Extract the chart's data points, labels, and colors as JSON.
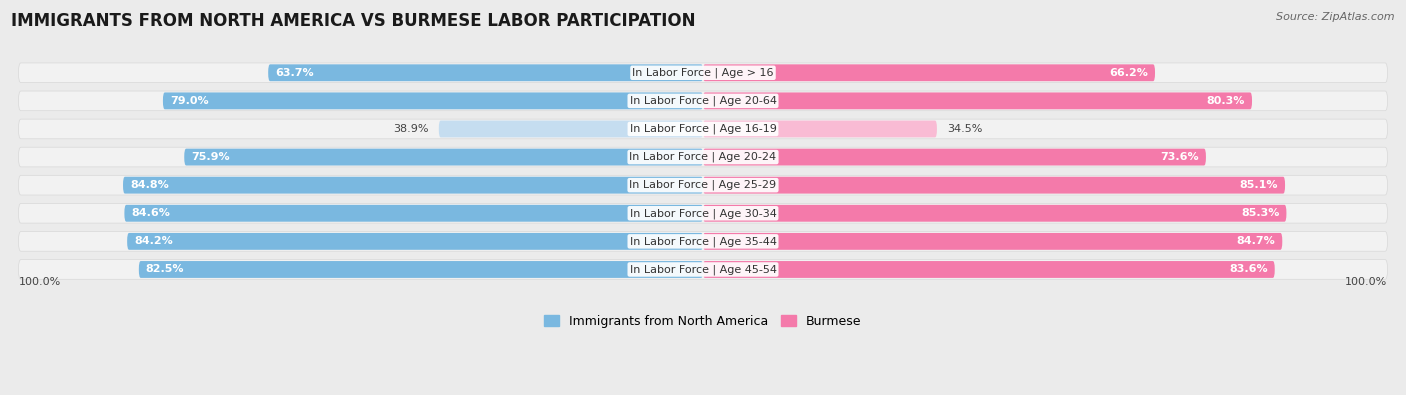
{
  "title": "IMMIGRANTS FROM NORTH AMERICA VS BURMESE LABOR PARTICIPATION",
  "source": "Source: ZipAtlas.com",
  "categories": [
    "In Labor Force | Age > 16",
    "In Labor Force | Age 20-64",
    "In Labor Force | Age 16-19",
    "In Labor Force | Age 20-24",
    "In Labor Force | Age 25-29",
    "In Labor Force | Age 30-34",
    "In Labor Force | Age 35-44",
    "In Labor Force | Age 45-54"
  ],
  "north_america_values": [
    63.7,
    79.0,
    38.9,
    75.9,
    84.8,
    84.6,
    84.2,
    82.5
  ],
  "burmese_values": [
    66.2,
    80.3,
    34.5,
    73.6,
    85.1,
    85.3,
    84.7,
    83.6
  ],
  "north_america_color": "#7ab8e0",
  "north_america_light_color": "#c5ddf0",
  "burmese_color": "#f47aaa",
  "burmese_light_color": "#f9bbd4",
  "bg_color": "#ebebeb",
  "row_bg_color": "#f2f2f2",
  "row_border_color": "#d8d8d8",
  "max_value": 100.0,
  "label_fontsize": 8.0,
  "cat_fontsize": 8.0,
  "title_fontsize": 12,
  "source_fontsize": 8,
  "legend_fontsize": 9,
  "value_threshold": 50.0
}
